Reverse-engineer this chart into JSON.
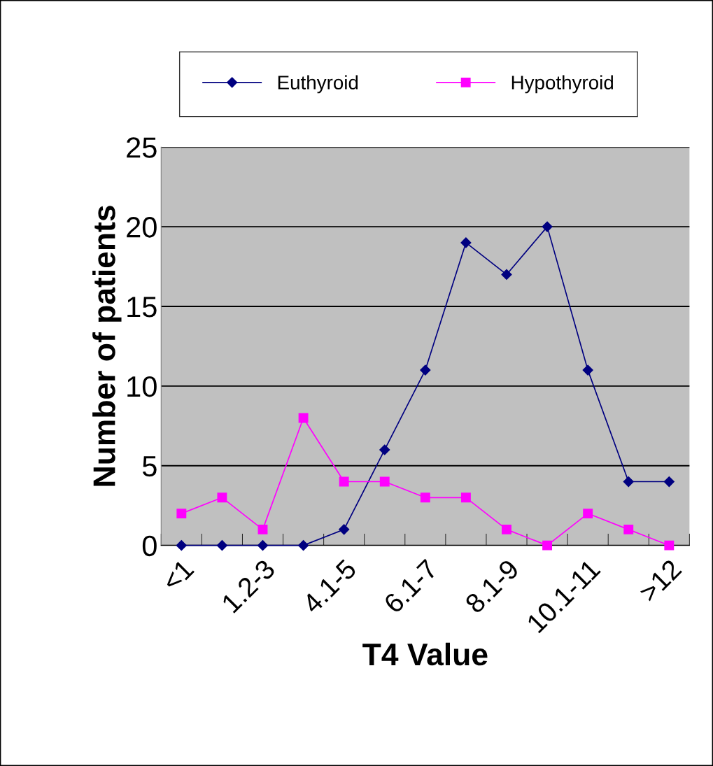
{
  "chart_data": {
    "type": "line",
    "xlabel": "T4 Value",
    "ylabel": "Number of patients",
    "categories": [
      "<1",
      null,
      "1.2-3",
      null,
      "4.1-5",
      null,
      "6.1-7",
      null,
      "8.1-9",
      null,
      "10.1-11",
      null,
      ">12"
    ],
    "series": [
      {
        "name": "Euthyroid",
        "color": "#000080",
        "marker": "diamond",
        "values": [
          0,
          0,
          0,
          0,
          1,
          6,
          11,
          19,
          17,
          20,
          11,
          4,
          4
        ]
      },
      {
        "name": "Hypothyroid",
        "color": "#ff00ff",
        "marker": "square",
        "values": [
          2,
          3,
          1,
          8,
          4,
          4,
          3,
          3,
          1,
          0,
          2,
          1,
          0
        ]
      }
    ],
    "ylim": [
      0,
      25
    ],
    "yticks": [
      0,
      5,
      10,
      15,
      20,
      25
    ],
    "grid": "y",
    "legend": "top",
    "line_style": "solid"
  }
}
